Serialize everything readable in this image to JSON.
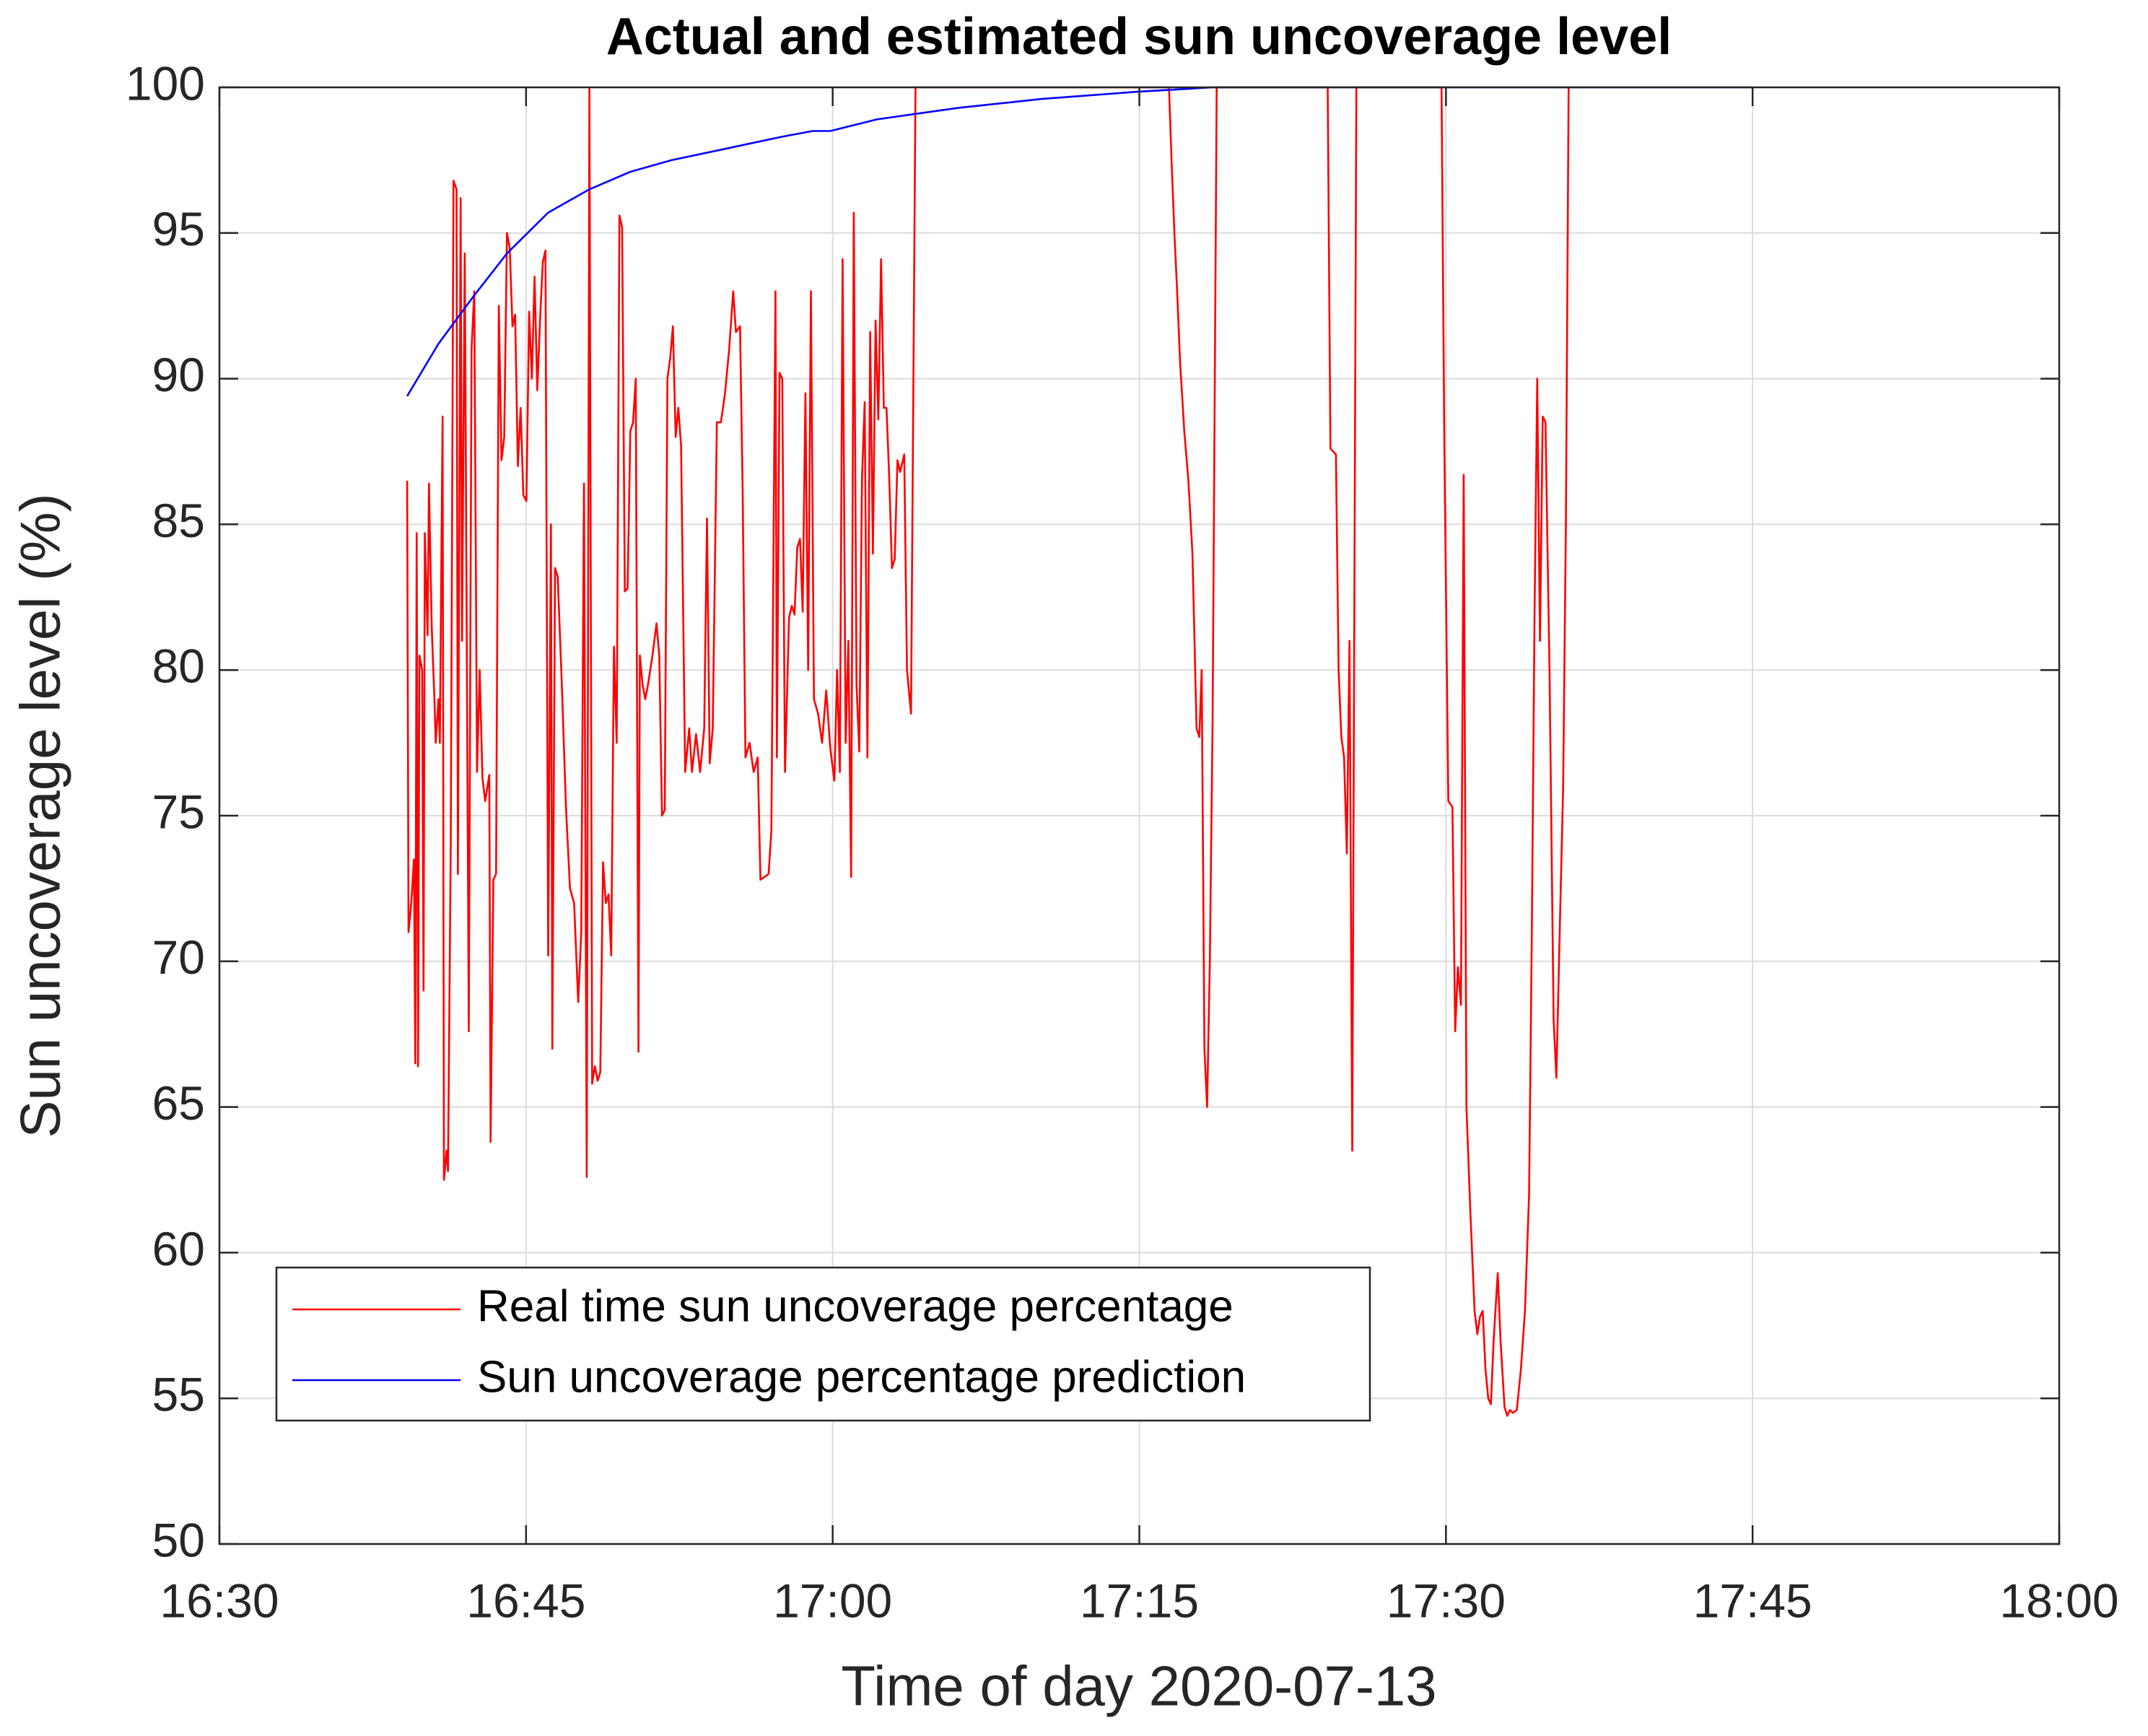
{
  "chart_data": {
    "type": "line",
    "title": "Actual and estimated sun uncoverage level",
    "xlabel": "Time of day 2020-07-13",
    "ylabel": "Sun uncoverage level (%)",
    "xlim": [
      "16:30",
      "18:00"
    ],
    "xticks": [
      "16:30",
      "16:45",
      "17:00",
      "17:15",
      "17:30",
      "17:45",
      "18:00"
    ],
    "ylim": [
      50,
      100
    ],
    "yticks": [
      50,
      55,
      60,
      65,
      70,
      75,
      80,
      85,
      90,
      95,
      100
    ],
    "grid": true,
    "legend": "lower-left",
    "series": [
      {
        "name": "Real time sun uncoverage percentage",
        "color": "#ff0000",
        "x": [
          "16:39:11",
          "16:39:15",
          "16:39:23",
          "16:39:31",
          "16:39:35",
          "16:39:39",
          "16:39:43",
          "16:39:47",
          "16:39:55",
          "16:39:59",
          "16:40:03",
          "16:40:11",
          "16:40:15",
          "16:40:23",
          "16:40:31",
          "16:40:35",
          "16:40:43",
          "16:40:47",
          "16:40:55",
          "16:40:59",
          "16:41:07",
          "16:41:11",
          "16:41:19",
          "16:41:27",
          "16:41:36",
          "16:41:40",
          "16:41:48",
          "16:41:52",
          "16:42:00",
          "16:42:12",
          "16:42:20",
          "16:42:28",
          "16:42:36",
          "16:42:44",
          "16:42:52",
          "16:43:00",
          "16:43:12",
          "16:43:16",
          "16:43:24",
          "16:43:32",
          "16:43:40",
          "16:43:48",
          "16:43:56",
          "16:44:04",
          "16:44:12",
          "16:44:20",
          "16:44:28",
          "16:44:36",
          "16:44:44",
          "16:44:52",
          "16:45:01",
          "16:45:09",
          "16:45:17",
          "16:45:25",
          "16:45:33",
          "16:45:41",
          "16:45:49",
          "16:45:57",
          "16:46:05",
          "16:46:13",
          "16:46:17",
          "16:46:25",
          "16:46:33",
          "16:46:45",
          "16:46:57",
          "16:47:09",
          "16:47:21",
          "16:47:33",
          "16:47:42",
          "16:47:50",
          "16:47:58",
          "16:48:06",
          "16:48:14",
          "16:48:22",
          "16:48:30",
          "16:48:38",
          "16:48:46",
          "16:48:54",
          "16:49:02",
          "16:49:10",
          "16:49:18",
          "16:49:26",
          "16:49:34",
          "16:49:42",
          "16:49:50",
          "16:49:58",
          "16:50:06",
          "16:50:14",
          "16:50:22",
          "16:50:30",
          "16:50:34",
          "16:50:42",
          "16:50:50",
          "16:50:58",
          "16:51:11",
          "16:51:23",
          "16:51:31",
          "16:51:39",
          "16:51:47",
          "16:51:55",
          "16:52:03",
          "16:52:11",
          "16:52:19",
          "16:52:27",
          "16:52:35",
          "16:52:47",
          "16:52:59",
          "16:53:07",
          "16:53:19",
          "16:53:31",
          "16:53:43",
          "16:53:51",
          "16:53:59",
          "16:54:08",
          "16:54:20",
          "16:54:32",
          "16:54:44",
          "16:54:56",
          "16:55:08",
          "16:55:16",
          "16:55:28",
          "16:55:36",
          "16:55:44",
          "16:55:56",
          "16:56:08",
          "16:56:20",
          "16:56:28",
          "16:56:40",
          "16:56:52",
          "16:57:00",
          "16:57:12",
          "16:57:16",
          "16:57:24",
          "16:57:32",
          "16:57:40",
          "16:57:52",
          "16:58:00",
          "16:58:08",
          "16:58:16",
          "16:58:24",
          "16:58:32",
          "16:58:40",
          "16:58:48",
          "16:58:56",
          "16:59:05",
          "16:59:17",
          "16:59:29",
          "16:59:41",
          "16:59:53",
          "17:00:05",
          "17:00:13",
          "17:00:21",
          "17:00:29",
          "17:00:38",
          "17:00:46",
          "17:00:54",
          "17:01:02",
          "17:01:10",
          "17:01:18",
          "17:01:26",
          "17:01:34",
          "17:01:42",
          "17:01:50",
          "17:01:58",
          "17:02:06",
          "17:02:14",
          "17:02:22",
          "17:02:30",
          "17:02:38",
          "17:02:46",
          "17:02:54",
          "17:03:02",
          "17:03:10",
          "17:03:18",
          "17:03:30",
          "17:03:38",
          "17:03:50",
          "17:04:03",
          "17:16:27",
          "17:16:35",
          "17:16:43",
          "17:16:51",
          "17:17:00",
          "17:17:12",
          "17:17:24",
          "17:17:36",
          "17:17:48",
          "17:17:56",
          "17:18:03",
          "17:18:11",
          "17:18:19",
          "17:18:27",
          "17:18:35",
          "17:18:47",
          "17:24:13",
          "17:24:21",
          "17:24:29",
          "17:24:37",
          "17:24:45",
          "17:24:53",
          "17:25:01",
          "17:25:09",
          "17:25:17",
          "17:25:25",
          "17:25:37",
          "17:29:47",
          "17:29:55",
          "17:30:07",
          "17:30:19",
          "17:30:27",
          "17:30:35",
          "17:30:44",
          "17:30:52",
          "17:31:00",
          "17:31:12",
          "17:31:24",
          "17:31:32",
          "17:31:40",
          "17:31:48",
          "17:31:56",
          "17:32:04",
          "17:32:12",
          "17:32:20",
          "17:32:32",
          "17:32:40",
          "17:32:52",
          "17:33:00",
          "17:33:08",
          "17:33:16",
          "17:33:28",
          "17:33:40",
          "17:33:52",
          "17:34:04",
          "17:34:12",
          "17:34:20",
          "17:34:28",
          "17:34:36",
          "17:34:44",
          "17:34:52",
          "17:35:04",
          "17:35:16",
          "17:35:24",
          "17:35:32",
          "17:35:44",
          "17:35:52",
          "17:36:00"
        ],
        "values": [
          86.5,
          71,
          72,
          73.5,
          66.5,
          84.7,
          66.4,
          80.5,
          80,
          69,
          84.7,
          81.2,
          86.4,
          81.5,
          79,
          77.5,
          79,
          77.5,
          88.7,
          62.5,
          63.5,
          62.8,
          74,
          96.8,
          96.5,
          73,
          96.2,
          81,
          94.3,
          67.6,
          91,
          93,
          76.5,
          80,
          76.3,
          75.5,
          76.4,
          63.8,
          72.8,
          73,
          92.5,
          87.2,
          88,
          95,
          94.5,
          91.8,
          92.2,
          87,
          89,
          86,
          85.8,
          92.3,
          90,
          93.5,
          89.6,
          92,
          94,
          94.4,
          70.2,
          85,
          67,
          83.5,
          83.2,
          79.5,
          75.3,
          72.5,
          72,
          68.6,
          71,
          86.4,
          62.6,
          100,
          65.8,
          66.4,
          65.9,
          66.2,
          73.4,
          72,
          72.3,
          70.2,
          80.8,
          77.5,
          95.6,
          95.2,
          82.7,
          82.8,
          88.2,
          88.5,
          90,
          66.9,
          80.5,
          79.5,
          79,
          79.5,
          80.5,
          81.6,
          80.5,
          75,
          75.2,
          90,
          90.7,
          91.8,
          88,
          89,
          87.7,
          76.5,
          78,
          76.5,
          77.8,
          76.5,
          78,
          85.2,
          76.8,
          78,
          88.5,
          88.5,
          89.5,
          91,
          93,
          91.6,
          91.8,
          86,
          77,
          77.5,
          76.5,
          77,
          72.8,
          72.9,
          73,
          74.5,
          93,
          77,
          90.2,
          90,
          76.5,
          81.8,
          82.2,
          81.9,
          84.2,
          84.5,
          82,
          89.5,
          80,
          93,
          79,
          78.5,
          77.5,
          79.3,
          77.3,
          76.2,
          80,
          76.5,
          94.1,
          77.5,
          81,
          72.9,
          95.7,
          79.5,
          77.2,
          86.6,
          89.2,
          77,
          91.6,
          84,
          92,
          88.6,
          94.1,
          89,
          89,
          86.6,
          83.5,
          83.8,
          87.2,
          86.8,
          87.4,
          80,
          78.5,
          100,
          100,
          97.4,
          95,
          93,
          90.5,
          88.2,
          86.5,
          84,
          78,
          77.7,
          80,
          67,
          65,
          70,
          78.2,
          100,
          100,
          87.6,
          87.5,
          87.4,
          80,
          77.7,
          77,
          73.7,
          81,
          63.5,
          100,
          100,
          88,
          75.5,
          75.3,
          67.6,
          69.8,
          68.5,
          86.7,
          65,
          61.3,
          58,
          57.2,
          57.8,
          58,
          56,
          55,
          54.8,
          57,
          59.3,
          57,
          54.7,
          54.4,
          54.6,
          54.5,
          54.6,
          56,
          58,
          62,
          71,
          82,
          90,
          81,
          88.7,
          88.5,
          80,
          68,
          66,
          70,
          76,
          85,
          100
        ]
      },
      {
        "name": "Sun uncoverage percentage prediction",
        "color": "#0000ff",
        "x": [
          "16:39:11",
          "16:40:43",
          "16:42:24",
          "16:44:04",
          "16:46:05",
          "16:48:06",
          "16:50:06",
          "16:52:07",
          "16:54:48",
          "16:57:29",
          "16:59:01",
          "16:59:53",
          "17:02:10",
          "17:06:11",
          "17:10:13",
          "17:14:54",
          "17:18:35",
          "17:45:00"
        ],
        "values": [
          89.4,
          91.2,
          92.8,
          94.3,
          95.7,
          96.5,
          97.1,
          97.5,
          97.9,
          98.3,
          98.5,
          98.5,
          98.9,
          99.3,
          99.6,
          99.85,
          100,
          100
        ]
      }
    ]
  }
}
